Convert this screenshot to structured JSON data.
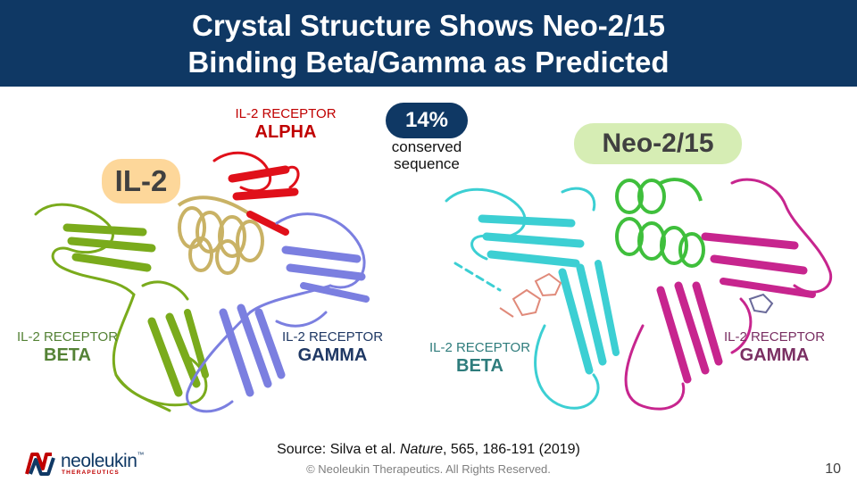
{
  "header": {
    "title_line1": "Crystal Structure Shows Neo-2/15",
    "title_line2": "Binding Beta/Gamma as Predicted"
  },
  "left": {
    "pill_label": "IL-2",
    "alpha": {
      "small": "IL-2 RECEPTOR",
      "big": "ALPHA"
    },
    "beta": {
      "small": "IL-2 RECEPTOR",
      "big": "BETA"
    },
    "gamma": {
      "small": "IL-2 RECEPTOR",
      "big": "GAMMA"
    }
  },
  "middle": {
    "percent": "14%",
    "caption_line1": "conserved",
    "caption_line2": "sequence"
  },
  "right": {
    "pill_label": "Neo-2/15",
    "beta": {
      "small": "IL-2 RECEPTOR",
      "big": "BETA"
    },
    "gamma": {
      "small": "IL-2 RECEPTOR",
      "big": "GAMMA"
    }
  },
  "footer": {
    "source_prefix": "Source: Silva et al. ",
    "source_journal": "Nature",
    "source_suffix": ", 565, 186-191 (2019)",
    "copyright": "© Neoleukin Therapeutics. All Rights Reserved.",
    "page_number": "10",
    "logo_text": "neoleukin",
    "logo_tm": "™",
    "logo_sub": "THERAPEUTICS"
  },
  "colors": {
    "header_bg": "#0f3864",
    "il2_pill": "#fdd79a",
    "neo_pill": "#d6edb4",
    "percent_pill": "#0f3864",
    "alpha_red": "#c00000",
    "beta_green": "#548235",
    "gamma_navy": "#1f3864",
    "beta_teal": "#2e7c7c",
    "gamma_purple": "#7a2f63",
    "protein_green": "#7aab1c",
    "protein_gold": "#c9b265",
    "protein_red": "#e0101a",
    "protein_lavender": "#7b7fe0",
    "protein_cyan": "#3ccfd3",
    "protein_lime": "#3fbf3c",
    "protein_magenta": "#c7258e"
  },
  "icons": [
    "protein-structure-il2-complex",
    "protein-structure-neo215-complex",
    "neoleukin-logo-icon"
  ]
}
